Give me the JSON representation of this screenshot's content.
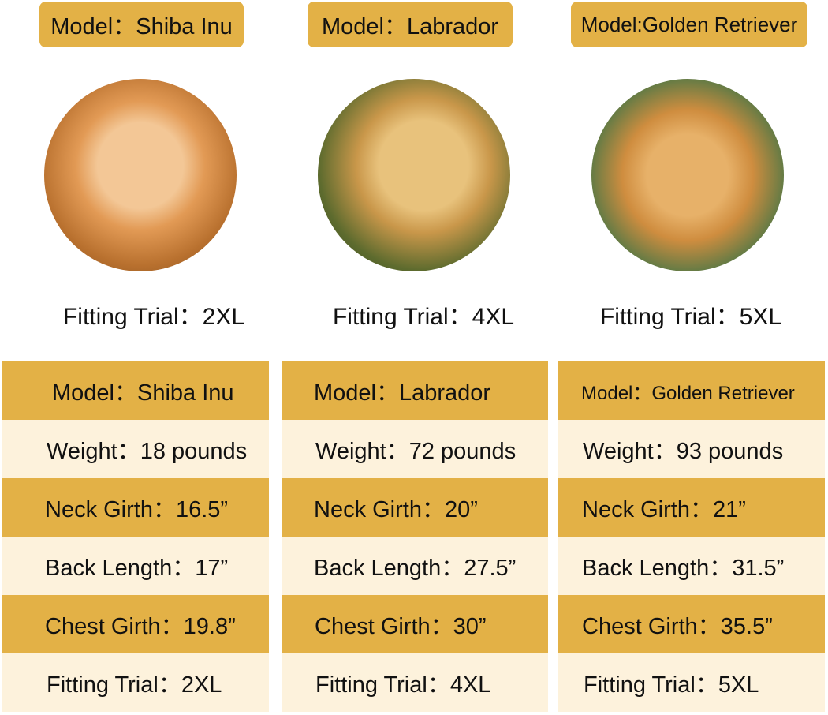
{
  "dogs": [
    {
      "top_label": "Model：Shiba Inu",
      "photo": "shiba-inu-photo",
      "fitting": "Fitting Trial：2XL",
      "rows": [
        "Model：Shiba Inu",
        "Weight：18 pounds",
        "Neck Girth：16.5”",
        "Back Length：17”",
        "Chest Girth：19.8”",
        "Fitting Trial：2XL"
      ]
    },
    {
      "top_label": "Model：Labrador",
      "photo": "labrador-photo",
      "fitting": "Fitting Trial：4XL",
      "rows": [
        "Model：Labrador",
        "Weight：72 pounds",
        "Neck Girth：20”",
        "Back Length：27.5”",
        "Chest Girth：30”",
        "Fitting Trial：4XL"
      ]
    },
    {
      "top_label": "Model:Golden Retriever",
      "photo": "golden-retriever-photo",
      "fitting": "Fitting Trial：5XL",
      "rows": [
        "Model：Golden Retriever",
        "Weight：93 pounds",
        "Neck Girth：21”",
        "Back Length：31.5”",
        "Chest Girth：35.5”",
        "Fitting Trial：5XL"
      ]
    }
  ],
  "colors": {
    "header_gold": "#e3b146",
    "row_cream": "#fdf2dc"
  }
}
